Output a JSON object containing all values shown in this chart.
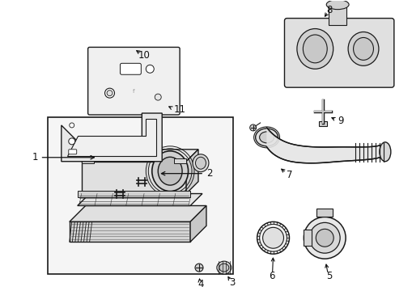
{
  "bg_color": "#ffffff",
  "fig_width": 4.89,
  "fig_height": 3.6,
  "dpi": 100,
  "line_color": "#1a1a1a",
  "fill_color": "#f0f0f0",
  "fill_dark": "#d8d8d8",
  "font_size": 8.5,
  "font_color": "#111111",
  "arrow_color": "#111111",
  "box_fill": "#e8e8e8"
}
